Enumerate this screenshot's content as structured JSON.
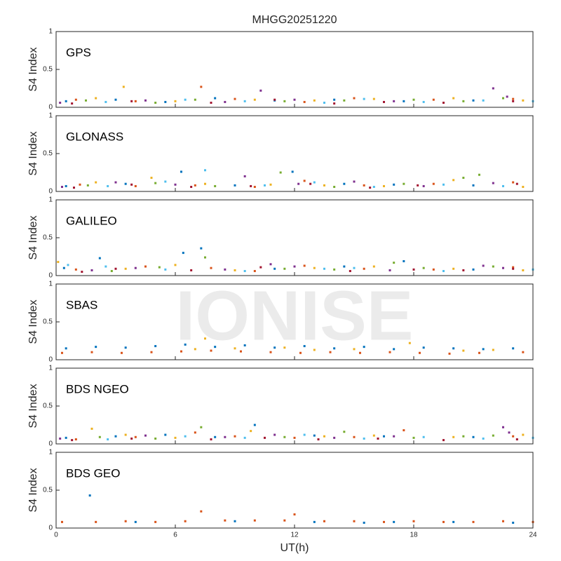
{
  "watermark": "IONISE",
  "chart_data": [
    {
      "type": "scatter",
      "title": "MHGG20251220",
      "annotation": "GPS",
      "ylabel": "S4 Index",
      "xlim": [
        0,
        24
      ],
      "ylim": [
        0,
        1
      ],
      "yticks": [
        0,
        0.5,
        1
      ],
      "xticks": [
        0,
        6,
        12,
        18,
        24
      ],
      "series": [
        {
          "color": "#0072BD",
          "x": [
            0.5,
            3,
            5.5,
            8,
            11,
            14,
            17.5,
            21
          ],
          "values": [
            0.08,
            0.1,
            0.07,
            0.12,
            0.09,
            0.1,
            0.08,
            0.09
          ]
        },
        {
          "color": "#D95319",
          "x": [
            1,
            4,
            7.3,
            9,
            12.5,
            15,
            19,
            23
          ],
          "values": [
            0.1,
            0.08,
            0.27,
            0.11,
            0.07,
            0.12,
            0.1,
            0.11
          ]
        },
        {
          "color": "#EDB120",
          "x": [
            2,
            3.4,
            6,
            10,
            13,
            16,
            20,
            23.5
          ],
          "values": [
            0.12,
            0.27,
            0.08,
            0.1,
            0.09,
            0.11,
            0.12,
            0.09
          ]
        },
        {
          "color": "#7E2F8E",
          "x": [
            0.2,
            4.5,
            8.5,
            10.3,
            12,
            17,
            22,
            22.7
          ],
          "values": [
            0.06,
            0.09,
            0.07,
            0.22,
            0.1,
            0.08,
            0.25,
            0.14
          ]
        },
        {
          "color": "#77AC30",
          "x": [
            1.5,
            5,
            7,
            11.5,
            14.5,
            18,
            20.5,
            22.5
          ],
          "values": [
            0.09,
            0.06,
            0.1,
            0.08,
            0.09,
            0.1,
            0.08,
            0.12
          ]
        },
        {
          "color": "#4DBEEE",
          "x": [
            2.5,
            6.5,
            9.5,
            13.5,
            15.5,
            18.5,
            21.5,
            24
          ],
          "values": [
            0.07,
            0.1,
            0.08,
            0.06,
            0.11,
            0.07,
            0.09,
            0.08
          ]
        },
        {
          "color": "#A2142F",
          "x": [
            0.8,
            3.8,
            7.8,
            11,
            14,
            16.5,
            19.5,
            23
          ],
          "values": [
            0.05,
            0.08,
            0.06,
            0.1,
            0.05,
            0.07,
            0.06,
            0.08
          ]
        }
      ]
    },
    {
      "type": "scatter",
      "annotation": "GLONASS",
      "ylabel": "S4 Index",
      "xlim": [
        0,
        24
      ],
      "ylim": [
        0,
        1
      ],
      "yticks": [
        0,
        0.5,
        1
      ],
      "xticks": [
        0,
        6,
        12,
        18,
        24
      ],
      "series": [
        {
          "color": "#0072BD",
          "x": [
            0.5,
            3.5,
            6.3,
            9,
            11.9,
            14.5,
            17,
            21
          ],
          "values": [
            0.07,
            0.1,
            0.26,
            0.08,
            0.26,
            0.1,
            0.09,
            0.08
          ]
        },
        {
          "color": "#D95319",
          "x": [
            1.2,
            4,
            7,
            10,
            12.5,
            15.5,
            19,
            23
          ],
          "values": [
            0.09,
            0.07,
            0.08,
            0.06,
            0.14,
            0.08,
            0.1,
            0.12
          ]
        },
        {
          "color": "#EDB120",
          "x": [
            2,
            4.8,
            7.5,
            10.8,
            13.5,
            16.5,
            20,
            23.5
          ],
          "values": [
            0.12,
            0.18,
            0.1,
            0.09,
            0.08,
            0.07,
            0.15,
            0.06
          ]
        },
        {
          "color": "#7E2F8E",
          "x": [
            0.3,
            3,
            6,
            9.5,
            12.2,
            15,
            18.5,
            22
          ],
          "values": [
            0.06,
            0.12,
            0.09,
            0.2,
            0.1,
            0.13,
            0.07,
            0.11
          ]
        },
        {
          "color": "#77AC30",
          "x": [
            1.6,
            5,
            8,
            11.3,
            14,
            17.5,
            20.5,
            21.3
          ],
          "values": [
            0.08,
            0.11,
            0.07,
            0.25,
            0.06,
            0.1,
            0.18,
            0.22
          ]
        },
        {
          "color": "#4DBEEE",
          "x": [
            2.6,
            5.5,
            7.5,
            10.5,
            13,
            16,
            19.5,
            22.5
          ],
          "values": [
            0.07,
            0.13,
            0.28,
            0.08,
            0.12,
            0.06,
            0.09,
            0.07
          ]
        },
        {
          "color": "#A2142F",
          "x": [
            0.9,
            3.8,
            6.8,
            9.8,
            12.8,
            15.8,
            18.2,
            23.2
          ],
          "values": [
            0.05,
            0.09,
            0.06,
            0.07,
            0.1,
            0.05,
            0.08,
            0.1
          ]
        }
      ]
    },
    {
      "type": "scatter",
      "annotation": "GALILEO",
      "ylabel": "S4 Index",
      "xlim": [
        0,
        24
      ],
      "ylim": [
        0,
        1
      ],
      "yticks": [
        0,
        0.5,
        1
      ],
      "xticks": [
        0,
        6,
        12,
        18,
        24
      ],
      "series": [
        {
          "color": "#0072BD",
          "x": [
            0.4,
            2.2,
            6.4,
            7.3,
            11,
            14.5,
            17.5,
            21
          ],
          "values": [
            0.1,
            0.23,
            0.3,
            0.36,
            0.09,
            0.12,
            0.19,
            0.08
          ]
        },
        {
          "color": "#D95319",
          "x": [
            1,
            4.5,
            7.8,
            10,
            12.5,
            15.5,
            19,
            23
          ],
          "values": [
            0.08,
            0.12,
            0.1,
            0.06,
            0.13,
            0.09,
            0.08,
            0.11
          ]
        },
        {
          "color": "#EDB120",
          "x": [
            0.1,
            3.5,
            6,
            9,
            13,
            16,
            20,
            23.5
          ],
          "values": [
            0.18,
            0.09,
            0.14,
            0.07,
            0.1,
            0.12,
            0.09,
            0.07
          ]
        },
        {
          "color": "#7E2F8E",
          "x": [
            1.8,
            4,
            8.5,
            10.8,
            12,
            16.8,
            21.5,
            22.5
          ],
          "values": [
            0.07,
            0.1,
            0.08,
            0.15,
            0.12,
            0.07,
            0.13,
            0.1
          ]
        },
        {
          "color": "#77AC30",
          "x": [
            2.8,
            5.2,
            7.5,
            11.5,
            14,
            17,
            18.5,
            22
          ],
          "values": [
            0.06,
            0.11,
            0.24,
            0.09,
            0.08,
            0.17,
            0.1,
            0.12
          ]
        },
        {
          "color": "#4DBEEE",
          "x": [
            0.6,
            2.5,
            5.5,
            9.5,
            13.5,
            15,
            19.5,
            24
          ],
          "values": [
            0.14,
            0.12,
            0.08,
            0.06,
            0.09,
            0.1,
            0.06,
            0.08
          ]
        },
        {
          "color": "#A2142F",
          "x": [
            1.3,
            3,
            6.8,
            10.3,
            14.8,
            18,
            20.5,
            23
          ],
          "values": [
            0.05,
            0.09,
            0.07,
            0.11,
            0.06,
            0.08,
            0.07,
            0.09
          ]
        }
      ]
    },
    {
      "type": "scatter",
      "annotation": "SBAS",
      "ylabel": "S4 Index",
      "xlim": [
        0,
        24
      ],
      "ylim": [
        0,
        1
      ],
      "yticks": [
        0,
        0.5,
        1
      ],
      "xticks": [
        0,
        6,
        12,
        18,
        24
      ],
      "series": [
        {
          "color": "#0072BD",
          "x": [
            0.5,
            2,
            3.5,
            5,
            6.5,
            8,
            9.5,
            11,
            12.5,
            14,
            15.5,
            17,
            18.5,
            20,
            21.5,
            23
          ],
          "values": [
            0.15,
            0.17,
            0.16,
            0.18,
            0.2,
            0.17,
            0.19,
            0.16,
            0.18,
            0.15,
            0.17,
            0.14,
            0.16,
            0.15,
            0.14,
            0.15
          ]
        },
        {
          "color": "#D95319",
          "x": [
            0.3,
            1.8,
            3.3,
            4.8,
            6.3,
            7.8,
            9.3,
            10.8,
            12.3,
            13.8,
            15.3,
            16.8,
            18.3,
            19.8,
            21.3,
            23.5
          ],
          "values": [
            0.09,
            0.1,
            0.09,
            0.1,
            0.11,
            0.12,
            0.11,
            0.1,
            0.09,
            0.1,
            0.09,
            0.1,
            0.09,
            0.08,
            0.09,
            0.1
          ]
        },
        {
          "color": "#EDB120",
          "x": [
            7,
            7.5,
            9,
            11.5,
            13,
            15,
            17.8,
            20.5,
            22
          ],
          "values": [
            0.14,
            0.28,
            0.15,
            0.16,
            0.13,
            0.14,
            0.22,
            0.12,
            0.13
          ]
        }
      ]
    },
    {
      "type": "scatter",
      "annotation": "BDS NGEO",
      "ylabel": "S4 Index",
      "xlim": [
        0,
        24
      ],
      "ylim": [
        0,
        1
      ],
      "yticks": [
        0,
        0.5,
        1
      ],
      "xticks": [
        0,
        6,
        12,
        18,
        24
      ],
      "series": [
        {
          "color": "#0072BD",
          "x": [
            0.5,
            3,
            5.5,
            8,
            10,
            13,
            16.5,
            21
          ],
          "values": [
            0.08,
            0.1,
            0.12,
            0.09,
            0.25,
            0.11,
            0.1,
            0.09
          ]
        },
        {
          "color": "#D95319",
          "x": [
            1,
            4,
            7,
            9,
            12,
            15,
            17.5,
            23
          ],
          "values": [
            0.06,
            0.09,
            0.15,
            0.1,
            0.08,
            0.09,
            0.18,
            0.1
          ]
        },
        {
          "color": "#EDB120",
          "x": [
            1.8,
            3.5,
            6,
            9.8,
            13.5,
            16,
            20,
            23.5
          ],
          "values": [
            0.2,
            0.12,
            0.08,
            0.17,
            0.1,
            0.11,
            0.09,
            0.12
          ]
        },
        {
          "color": "#7E2F8E",
          "x": [
            0.2,
            4.5,
            8.5,
            11,
            14,
            17,
            22.5,
            22.8
          ],
          "values": [
            0.07,
            0.11,
            0.09,
            0.12,
            0.08,
            0.1,
            0.22,
            0.15
          ]
        },
        {
          "color": "#77AC30",
          "x": [
            2.2,
            5,
            7.3,
            11.5,
            14.5,
            18,
            20.5,
            22
          ],
          "values": [
            0.09,
            0.07,
            0.22,
            0.09,
            0.16,
            0.08,
            0.1,
            0.11
          ]
        },
        {
          "color": "#4DBEEE",
          "x": [
            2.6,
            6.5,
            9.5,
            12.5,
            15.5,
            18.5,
            21.5,
            24
          ],
          "values": [
            0.06,
            0.1,
            0.08,
            0.12,
            0.07,
            0.09,
            0.07,
            0.08
          ]
        },
        {
          "color": "#A2142F",
          "x": [
            0.8,
            3.8,
            7.8,
            10.5,
            13.2,
            16.2,
            19.5,
            23.2
          ],
          "values": [
            0.05,
            0.07,
            0.06,
            0.08,
            0.06,
            0.07,
            0.05,
            0.06
          ]
        }
      ]
    },
    {
      "type": "scatter",
      "annotation": "BDS GEO",
      "ylabel": "S4 Index",
      "xlabel": "UT(h)",
      "xlim": [
        0,
        24
      ],
      "ylim": [
        0,
        1
      ],
      "yticks": [
        0,
        0.5,
        1
      ],
      "xticks": [
        0,
        6,
        12,
        18,
        24
      ],
      "series": [
        {
          "color": "#0072BD",
          "x": [
            1.7,
            4,
            9,
            13,
            15.5,
            17,
            20,
            23
          ],
          "values": [
            0.43,
            0.08,
            0.09,
            0.08,
            0.07,
            0.08,
            0.08,
            0.07
          ]
        },
        {
          "color": "#D95319",
          "x": [
            0.3,
            2,
            3.5,
            5,
            6.5,
            7.3,
            8.5,
            10,
            11.5,
            12,
            13.5,
            15,
            16.5,
            18,
            19.5,
            21,
            22.5,
            24
          ],
          "values": [
            0.08,
            0.08,
            0.09,
            0.08,
            0.09,
            0.22,
            0.1,
            0.1,
            0.1,
            0.18,
            0.09,
            0.09,
            0.08,
            0.09,
            0.08,
            0.08,
            0.09,
            0.08
          ]
        }
      ]
    }
  ]
}
